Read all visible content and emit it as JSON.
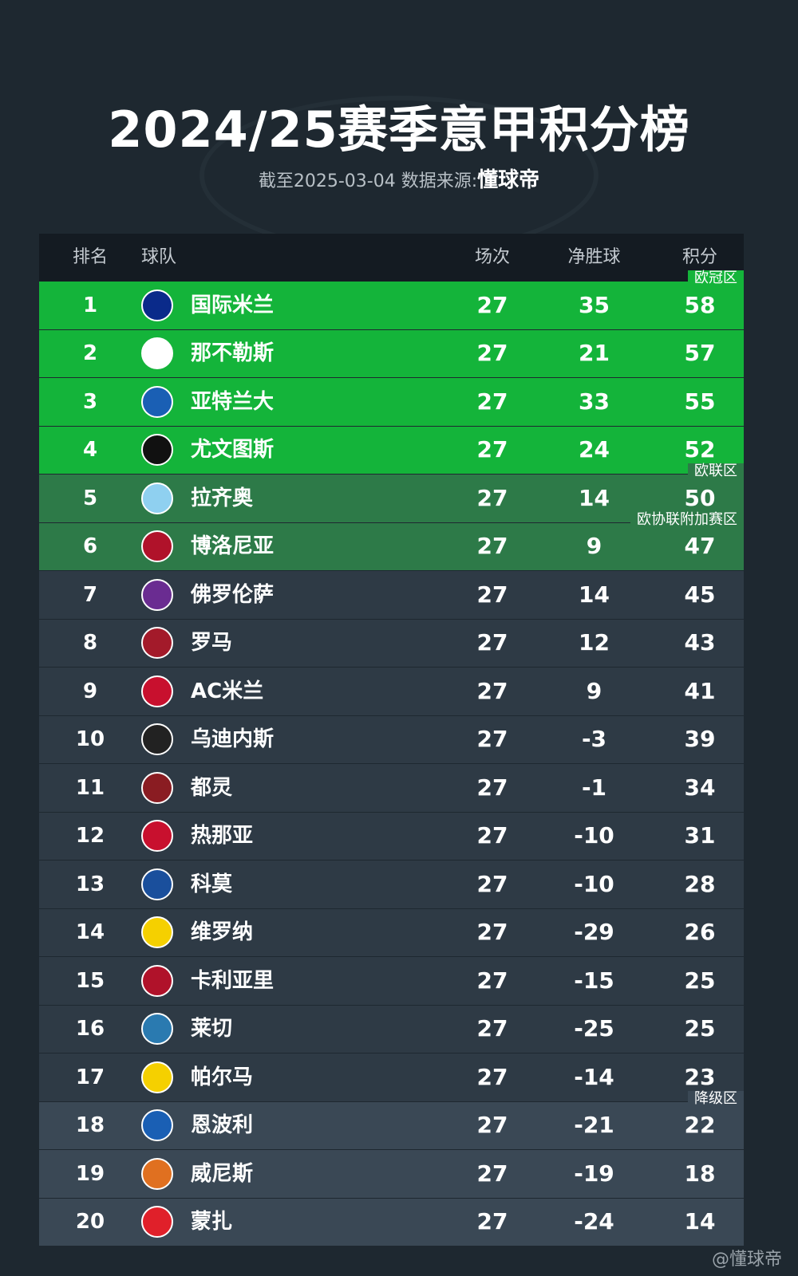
{
  "title": "2024/25赛季意甲积分榜",
  "subtitle": {
    "prefix": "截至2025-03-04 数据来源:",
    "source": "懂球帝"
  },
  "headers": {
    "rank": "排名",
    "team": "球队",
    "played": "场次",
    "gd": "净胜球",
    "pts": "积分"
  },
  "zones": {
    "ucl": "欧冠区",
    "uel": "欧联区",
    "uecl": "欧协联附加赛区",
    "rel": "降级区"
  },
  "colors": {
    "ucl": "#14b43a",
    "uel": "#2d7a48",
    "normal": "#2e3a45",
    "rel": "#3a4855",
    "header": "#141b22",
    "background": "#1e2830"
  },
  "rows": [
    {
      "rank": "1",
      "team": "国际米兰",
      "played": "27",
      "gd": "35",
      "pts": "58",
      "logo": "#0a2a8a"
    },
    {
      "rank": "2",
      "team": "那不勒斯",
      "played": "27",
      "gd": "21",
      "pts": "57",
      "logo": "#ffffff"
    },
    {
      "rank": "3",
      "team": "亚特兰大",
      "played": "27",
      "gd": "33",
      "pts": "55",
      "logo": "#1a5fb4"
    },
    {
      "rank": "4",
      "team": "尤文图斯",
      "played": "27",
      "gd": "24",
      "pts": "52",
      "logo": "#111111"
    },
    {
      "rank": "5",
      "team": "拉齐奥",
      "played": "27",
      "gd": "14",
      "pts": "50",
      "logo": "#8fd0f0"
    },
    {
      "rank": "6",
      "team": "博洛尼亚",
      "played": "27",
      "gd": "9",
      "pts": "47",
      "logo": "#b0122a"
    },
    {
      "rank": "7",
      "team": "佛罗伦萨",
      "played": "27",
      "gd": "14",
      "pts": "45",
      "logo": "#6a2c91"
    },
    {
      "rank": "8",
      "team": "罗马",
      "played": "27",
      "gd": "12",
      "pts": "43",
      "logo": "#a31a2a"
    },
    {
      "rank": "9",
      "team": "AC米兰",
      "played": "27",
      "gd": "9",
      "pts": "41",
      "logo": "#c8102e"
    },
    {
      "rank": "10",
      "team": "乌迪内斯",
      "played": "27",
      "gd": "-3",
      "pts": "39",
      "logo": "#222222"
    },
    {
      "rank": "11",
      "team": "都灵",
      "played": "27",
      "gd": "-1",
      "pts": "34",
      "logo": "#8a1c22"
    },
    {
      "rank": "12",
      "team": "热那亚",
      "played": "27",
      "gd": "-10",
      "pts": "31",
      "logo": "#c8102e"
    },
    {
      "rank": "13",
      "team": "科莫",
      "played": "27",
      "gd": "-10",
      "pts": "28",
      "logo": "#1a4f9c"
    },
    {
      "rank": "14",
      "team": "维罗纳",
      "played": "27",
      "gd": "-29",
      "pts": "26",
      "logo": "#f5d000"
    },
    {
      "rank": "15",
      "team": "卡利亚里",
      "played": "27",
      "gd": "-15",
      "pts": "25",
      "logo": "#b0122a"
    },
    {
      "rank": "16",
      "team": "莱切",
      "played": "27",
      "gd": "-25",
      "pts": "25",
      "logo": "#2a7ab0"
    },
    {
      "rank": "17",
      "team": "帕尔马",
      "played": "27",
      "gd": "-14",
      "pts": "23",
      "logo": "#f5d000"
    },
    {
      "rank": "18",
      "team": "恩波利",
      "played": "27",
      "gd": "-21",
      "pts": "22",
      "logo": "#1a5fb4"
    },
    {
      "rank": "19",
      "team": "威尼斯",
      "played": "27",
      "gd": "-19",
      "pts": "18",
      "logo": "#e07020"
    },
    {
      "rank": "20",
      "team": "蒙扎",
      "played": "27",
      "gd": "-24",
      "pts": "14",
      "logo": "#e0202a"
    }
  ],
  "watermark": "@懂球帝"
}
